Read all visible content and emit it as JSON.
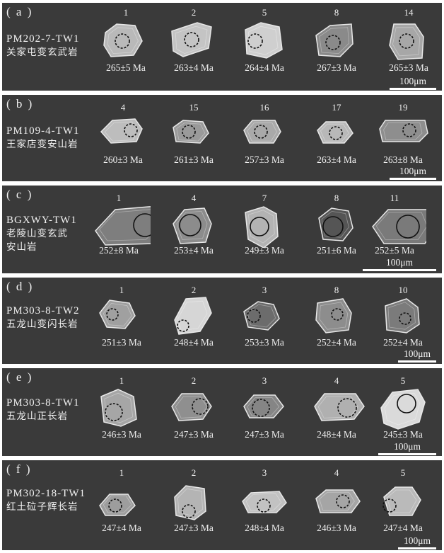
{
  "scale_label": "100μm",
  "panels": [
    {
      "label": "( a )",
      "sample_code": "PM202-7-TW1",
      "rock_lines": [
        "关家屯变玄武岩"
      ],
      "grains": [
        {
          "num": "1",
          "age": "265±5 Ma",
          "tone": "#b9b9b9"
        },
        {
          "num": "2",
          "age": "263±4 Ma",
          "tone": "#c4c4c4"
        },
        {
          "num": "5",
          "age": "264±4 Ma",
          "tone": "#cfcfcf"
        },
        {
          "num": "8",
          "age": "267±3 Ma",
          "tone": "#8a8a8a"
        },
        {
          "num": "14",
          "age": "265±3 Ma",
          "tone": "#a7a7a7"
        }
      ]
    },
    {
      "label": "( b )",
      "sample_code": "PM109-4-TW1",
      "rock_lines": [
        "王家店变安山岩"
      ],
      "grains": [
        {
          "num": "4",
          "age": "260±3 Ma",
          "tone": "#bdbdbd"
        },
        {
          "num": "15",
          "age": "261±3 Ma",
          "tone": "#9a9a9a"
        },
        {
          "num": "16",
          "age": "257±3 Ma",
          "tone": "#a9a9a9"
        },
        {
          "num": "17",
          "age": "263±4 Ma",
          "tone": "#b8b8b8"
        },
        {
          "num": "19",
          "age": "263±8 Ma",
          "tone": "#8e8e8e"
        }
      ]
    },
    {
      "label": "( c )",
      "sample_code": "BGXWY-TW1",
      "rock_lines": [
        "老陵山变玄武",
        "安山岩"
      ],
      "grains": [
        {
          "num": "1",
          "age": "252±8 Ma",
          "tone": "#7e7e7e"
        },
        {
          "num": "4",
          "age": "253±4 Ma",
          "tone": "#8c8c8c"
        },
        {
          "num": "7",
          "age": "249±3 Ma",
          "tone": "#b3b3b3"
        },
        {
          "num": "8",
          "age": "251±6 Ma",
          "tone": "#555555"
        },
        {
          "num": "11",
          "age": "252±5 Ma",
          "tone": "#7a7a7a"
        }
      ]
    },
    {
      "label": "( d )",
      "sample_code": "PM303-8-TW2",
      "rock_lines": [
        "五龙山变闪长岩"
      ],
      "grains": [
        {
          "num": "1",
          "age": "251±3 Ma",
          "tone": "#a0a0a0"
        },
        {
          "num": "2",
          "age": "248±4 Ma",
          "tone": "#d6d6d6"
        },
        {
          "num": "3",
          "age": "253±3 Ma",
          "tone": "#6c6c6c"
        },
        {
          "num": "8",
          "age": "252±4 Ma",
          "tone": "#8d8d8d"
        },
        {
          "num": "10",
          "age": "252±4 Ma",
          "tone": "#7b7b7b"
        }
      ]
    },
    {
      "label": "( e )",
      "sample_code": "PM303-8-TW1",
      "rock_lines": [
        "五龙山正长岩"
      ],
      "grains": [
        {
          "num": "1",
          "age": "246±3 Ma",
          "tone": "#a6a6a6"
        },
        {
          "num": "2",
          "age": "247±3 Ma",
          "tone": "#8f8f8f"
        },
        {
          "num": "3",
          "age": "247±3 Ma",
          "tone": "#858585"
        },
        {
          "num": "4",
          "age": "248±4 Ma",
          "tone": "#b0b0b0"
        },
        {
          "num": "5",
          "age": "245±3 Ma",
          "tone": "#dadada"
        }
      ]
    },
    {
      "label": "( f )",
      "sample_code": "PM302-18-TW1",
      "rock_lines": [
        "红土砬子辉长岩"
      ],
      "grains": [
        {
          "num": "1",
          "age": "247±4 Ma",
          "tone": "#9d9d9d"
        },
        {
          "num": "2",
          "age": "247±3 Ma",
          "tone": "#b4b4b4"
        },
        {
          "num": "3",
          "age": "248±4 Ma",
          "tone": "#c2c2c2"
        },
        {
          "num": "4",
          "age": "246±3 Ma",
          "tone": "#a5a5a5"
        },
        {
          "num": "5",
          "age": "247±4 Ma",
          "tone": "#bababa"
        }
      ]
    }
  ]
}
